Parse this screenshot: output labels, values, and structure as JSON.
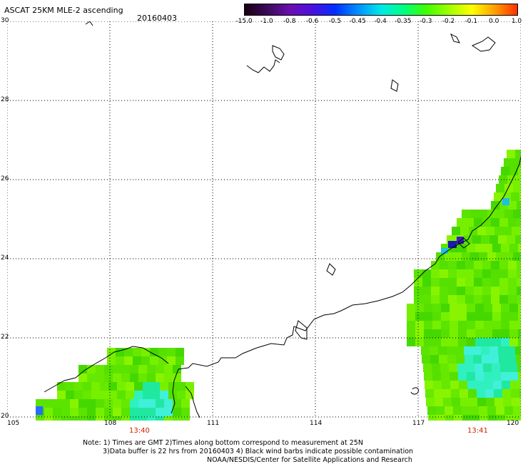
{
  "header": {
    "title": "ASCAT 25KM MLE-2 ascending",
    "date": "20160403"
  },
  "colorbar": {
    "labels": [
      "-15.0",
      "-1.0",
      "-0.8",
      "-0.6",
      "-0.5",
      "-0.45",
      "-0.4",
      "-0.35",
      "-0.3",
      "-0.2",
      "-0.1",
      "0.0",
      "1.0"
    ],
    "colors": [
      "#1a0010",
      "#3b0a5a",
      "#6a0fb0",
      "#4a10e0",
      "#0030ff",
      "#0090ff",
      "#00e8e8",
      "#00ff80",
      "#40ff00",
      "#a0ff00",
      "#ffff00",
      "#ffa000",
      "#ff3000"
    ]
  },
  "axes": {
    "lat_labels": [
      "30",
      "28",
      "26",
      "24",
      "22",
      "20"
    ],
    "lon_labels": [
      "105",
      "108",
      "111",
      "114",
      "117",
      "120"
    ],
    "lat_range": [
      20,
      30
    ],
    "lon_range": [
      105,
      120
    ]
  },
  "swath_times": {
    "left": "13:40",
    "right": "13:41"
  },
  "notes": {
    "line1": "Note: 1) Times are GMT 2)Times along bottom correspond to measurement at 25N",
    "line2": "3)Data buffer is 22 hrs from 20160403 4) Black wind barbs indicate possible contamination",
    "line3": "NOAA/NESDIS/Center for Satellite Applications and Research"
  }
}
